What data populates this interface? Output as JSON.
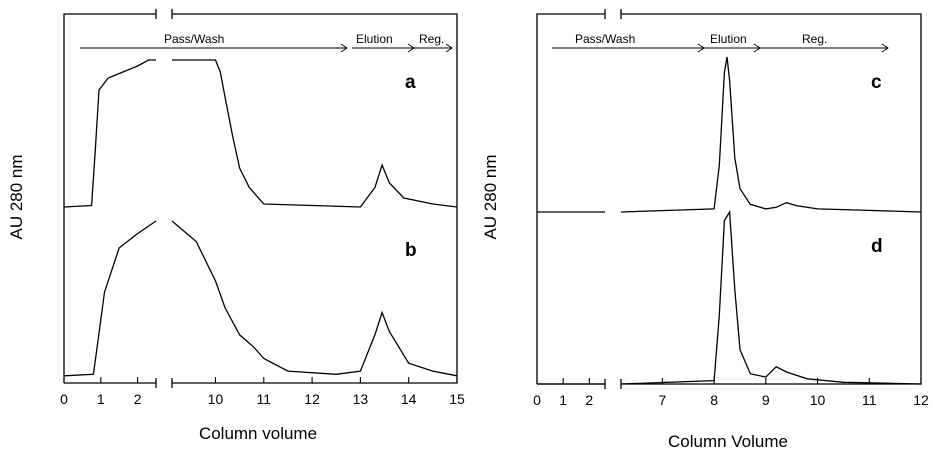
{
  "chart_data": [
    {
      "type": "line",
      "xlabel": "Column volume",
      "ylabel": "AU 280 nm",
      "x_ticks": [
        0,
        1,
        2,
        10,
        11,
        12,
        13,
        14,
        15
      ],
      "axis_break": [
        2.5,
        9.1
      ],
      "phase_labels": [
        "Pass/Wash",
        "Elution",
        "Reg."
      ],
      "series": [
        {
          "name": "a",
          "x": [
            0,
            0.75,
            0.85,
            0.95,
            1.2,
            1.6,
            2.0,
            2.3,
            2.5,
            9.1,
            10.0,
            10.1,
            10.2,
            10.35,
            10.5,
            10.7,
            11.0,
            12.0,
            13.0,
            13.3,
            13.45,
            13.6,
            13.9,
            14.5,
            15.0
          ],
          "y": [
            0.02,
            0.03,
            0.4,
            0.8,
            0.88,
            0.92,
            0.96,
            1.0,
            1.0,
            1.0,
            1.0,
            0.92,
            0.75,
            0.5,
            0.28,
            0.15,
            0.04,
            0.03,
            0.02,
            0.15,
            0.3,
            0.18,
            0.08,
            0.04,
            0.02
          ]
        },
        {
          "name": "b",
          "x": [
            0,
            0.8,
            0.9,
            1.1,
            1.5,
            2.0,
            2.5,
            9.1,
            9.6,
            10.0,
            10.2,
            10.5,
            10.8,
            11.0,
            11.5,
            12.5,
            13.0,
            13.3,
            13.45,
            13.6,
            14.0,
            14.5,
            15.0
          ],
          "y": [
            0.02,
            0.03,
            0.2,
            0.55,
            0.83,
            0.92,
            1.0,
            1.0,
            0.87,
            0.62,
            0.45,
            0.28,
            0.2,
            0.13,
            0.05,
            0.03,
            0.05,
            0.28,
            0.42,
            0.3,
            0.1,
            0.05,
            0.02
          ]
        }
      ]
    },
    {
      "type": "line",
      "xlabel": "Column Volume",
      "ylabel": "AU 280 nm",
      "x_ticks": [
        0,
        1,
        2,
        7,
        8,
        9,
        10,
        11,
        12
      ],
      "axis_break": [
        2.6,
        6.2
      ],
      "phase_labels": [
        "Pass/Wash",
        "Elution",
        "Reg."
      ],
      "series": [
        {
          "name": "c",
          "x": [
            0,
            2.6,
            6.2,
            8.0,
            8.1,
            8.2,
            8.25,
            8.3,
            8.4,
            8.5,
            8.7,
            9.0,
            9.2,
            9.4,
            9.6,
            10.0,
            11.0,
            12.0
          ],
          "y": [
            0.0,
            0.0,
            0.0,
            0.02,
            0.3,
            0.9,
            1.0,
            0.85,
            0.35,
            0.15,
            0.05,
            0.02,
            0.03,
            0.06,
            0.04,
            0.02,
            0.01,
            0.0
          ]
        },
        {
          "name": "d",
          "x": [
            0,
            2.6,
            6.2,
            8.0,
            8.1,
            8.2,
            8.3,
            8.4,
            8.5,
            8.7,
            9.0,
            9.2,
            9.4,
            9.8,
            10.5,
            12.0
          ],
          "y": [
            0.0,
            0.0,
            0.0,
            0.02,
            0.4,
            0.95,
            1.0,
            0.55,
            0.2,
            0.06,
            0.04,
            0.1,
            0.07,
            0.03,
            0.01,
            0.0
          ]
        }
      ]
    }
  ]
}
